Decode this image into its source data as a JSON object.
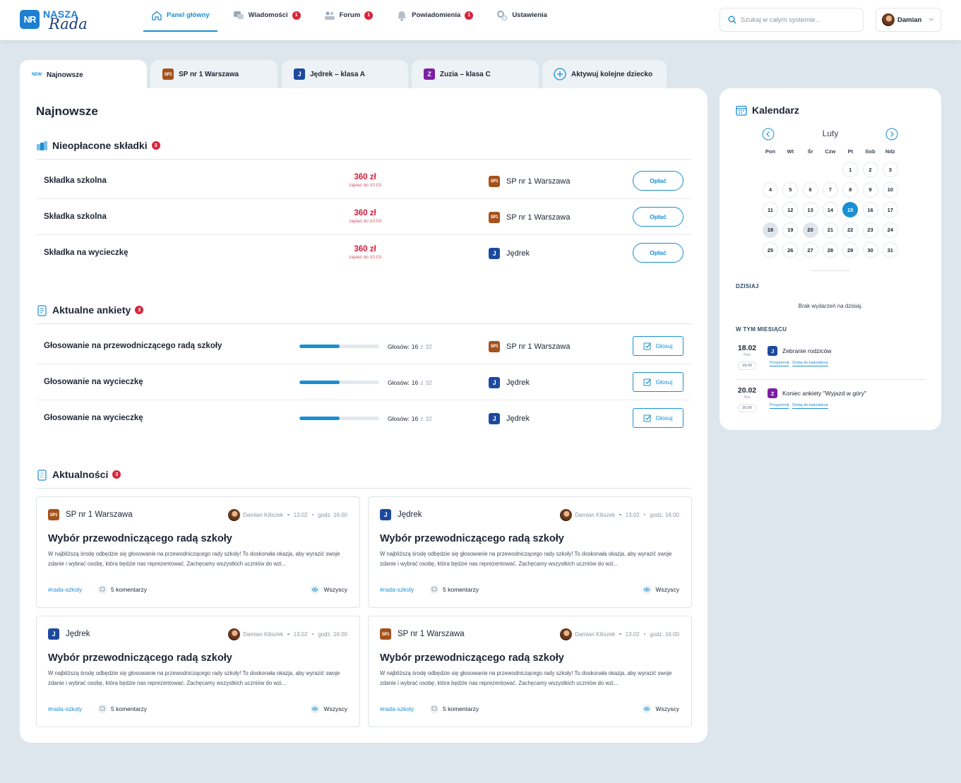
{
  "header": {
    "logo": {
      "mark": "NR",
      "top": "NASZA",
      "bottom": "Rada"
    },
    "nav": [
      {
        "label": "Panel główny",
        "active": true
      },
      {
        "label": "Wiadomości",
        "badge": 1
      },
      {
        "label": "Forum",
        "badge": 1
      },
      {
        "label": "Powiadomienia",
        "badge": 1
      },
      {
        "label": "Ustawienia"
      }
    ],
    "search_placeholder": "Szukaj w całym systemie...",
    "user": "Damian"
  },
  "tabs": [
    {
      "badge": "NEW",
      "label": "Najnowsze",
      "active": true
    },
    {
      "icon": {
        "icon": "SP1",
        "color": "#a4521c"
      },
      "label": "SP nr 1 Warszawa"
    },
    {
      "icon": {
        "icon": "J",
        "color": "#1d4a9e"
      },
      "label": "Jędrek – klasa A"
    },
    {
      "icon": {
        "icon": "Z",
        "color": "#7b1fa2"
      },
      "label": "Zuzia – klasa C"
    },
    {
      "plus": true,
      "label": "Aktywuj kolejne dziecko"
    }
  ],
  "main": {
    "title": "Najnowsze",
    "fees": {
      "title": "Nieopłacone składki",
      "badge": 3,
      "rows": [
        {
          "name": "Składka szkolna",
          "amount": "360 zł",
          "due": "zapłać do 10.03",
          "school": {
            "icon": "SP1",
            "name": "SP nr 1 Warszawa",
            "color": "#a4521c"
          },
          "action": "Opłać"
        },
        {
          "name": "Składka szkolna",
          "amount": "360 zł",
          "due": "zapłać do 10.03",
          "school": {
            "icon": "SP1",
            "name": "SP nr 1 Warszawa",
            "color": "#a4521c"
          },
          "action": "Opłać"
        },
        {
          "name": "Składka na wycieczkę",
          "amount": "360 zł",
          "due": "zapłać do 10.03",
          "school": {
            "icon": "J",
            "name": "Jędrek",
            "color": "#1d4a9e"
          },
          "action": "Opłać"
        }
      ]
    },
    "polls": {
      "title": "Aktualne ankiety",
      "badge": 3,
      "rows": [
        {
          "name": "Głosowanie na przewodniczącego radą szkoły",
          "votes_label": "Głosów:",
          "votes": 16,
          "of": "z",
          "total": 32,
          "school": {
            "icon": "SP1",
            "name": "SP nr 1 Warszawa",
            "color": "#a4521c"
          },
          "action": "Głosuj"
        },
        {
          "name": "Głosowanie na wycieczkę",
          "votes_label": "Głosów:",
          "votes": 16,
          "of": "z",
          "total": 32,
          "school": {
            "icon": "J",
            "name": "Jędrek",
            "color": "#1d4a9e"
          },
          "action": "Głosuj"
        },
        {
          "name": "Głosowanie na wycieczkę",
          "votes_label": "Głosów:",
          "votes": 16,
          "of": "z",
          "total": 32,
          "school": {
            "icon": "J",
            "name": "Jędrek",
            "color": "#1d4a9e"
          },
          "action": "Głosuj"
        }
      ]
    },
    "news": {
      "title": "Aktualności",
      "badge": 3,
      "cards": [
        {
          "school": {
            "icon": "SP1",
            "name": "SP nr 1 Warszawa",
            "color": "#a4521c"
          },
          "author": "Damian Kiliszek",
          "date": "13.02",
          "time": "godz. 16:00",
          "title": "Wybór przewodniczącego radą szkoły",
          "text": "W najbliższą środę odbędzie się głosowanie na przewodniczącego rady szkoły! To doskonała okazja, aby wyrazić swoje zdanie i wybrać osobę, która będzie nas reprezentować. Zachęcamy wszystkich uczniów do wzi...",
          "tag": "#rada-szkoly",
          "comments": "5 komentarzy",
          "audience": "Wszyscy"
        },
        {
          "school": {
            "icon": "J",
            "name": "Jędrek",
            "color": "#1d4a9e"
          },
          "author": "Damian Kiliszek",
          "date": "13.02",
          "time": "godz. 16:00",
          "title": "Wybór przewodniczącego radą szkoły",
          "text": "W najbliższą środę odbędzie się głosowanie na przewodniczącego rady szkoły! To doskonała okazja, aby wyrazić swoje zdanie i wybrać osobę, która będzie nas reprezentować. Zachęcamy wszystkich uczniów do wzi...",
          "tag": "#rada-szkoly",
          "comments": "5 komentarzy",
          "audience": "Wszyscy"
        },
        {
          "school": {
            "icon": "J",
            "name": "Jędrek",
            "color": "#1d4a9e"
          },
          "author": "Damian Kiliszek",
          "date": "13.02",
          "time": "godz. 16:00",
          "title": "Wybór przewodniczącego radą szkoły",
          "text": "W najbliższą środę odbędzie się głosowanie na przewodniczącego rady szkoły! To doskonała okazja, aby wyrazić swoje zdanie i wybrać osobę, która będzie nas reprezentować. Zachęcamy wszystkich uczniów do wzi...",
          "tag": "#rada-szkoly",
          "comments": "5 komentarzy",
          "audience": "Wszyscy"
        },
        {
          "school": {
            "icon": "SP1",
            "name": "SP nr 1 Warszawa",
            "color": "#a4521c"
          },
          "author": "Damian Kiliszek",
          "date": "13.02",
          "time": "godz. 16:00",
          "title": "Wybór przewodniczącego radą szkoły",
          "text": "W najbliższą środę odbędzie się głosowanie na przewodniczącego rady szkoły! To doskonała okazja, aby wyrazić swoje zdanie i wybrać osobę, która będzie nas reprezentować. Zachęcamy wszystkich uczniów do wzi...",
          "tag": "#rada-szkoly",
          "comments": "5 komentarzy",
          "audience": "Wszyscy"
        }
      ]
    }
  },
  "calendar": {
    "title": "Kalendarz",
    "month": "Luty",
    "weekdays": [
      "Pon",
      "Wt",
      "Śr",
      "Czw",
      "Pt",
      "Sob",
      "Ndz"
    ],
    "weeks": [
      [
        null,
        null,
        null,
        null,
        1,
        2,
        3
      ],
      [
        4,
        5,
        6,
        7,
        8,
        9,
        10
      ],
      [
        11,
        12,
        13,
        14,
        15,
        16,
        17
      ],
      [
        18,
        19,
        20,
        21,
        22,
        23,
        24
      ],
      [
        25,
        26,
        27,
        28,
        29,
        30,
        31
      ]
    ],
    "today": 15,
    "marked": [
      18,
      20
    ],
    "today_label": "DZISIAJ",
    "no_events": "Brak wydarzeń na dzisiaj.",
    "month_label": "W TYM MIESIĄCU",
    "events": [
      {
        "date": "18.02",
        "weekday": "Pon",
        "time": "18:00",
        "icon": {
          "icon": "J",
          "color": "#1d4a9e"
        },
        "title": "Zebranie rodziców",
        "actions": [
          "Przypomnij",
          "Dodaj do kalendarza"
        ]
      },
      {
        "date": "20.02",
        "weekday": "Śro",
        "time": "20:00",
        "icon": {
          "icon": "Z",
          "color": "#7b1fa2"
        },
        "title": "Koniec ankiety \"Wyjazd w góry\"",
        "actions": [
          "Przypomnij",
          "Dodaj do kalendarza"
        ]
      }
    ]
  }
}
